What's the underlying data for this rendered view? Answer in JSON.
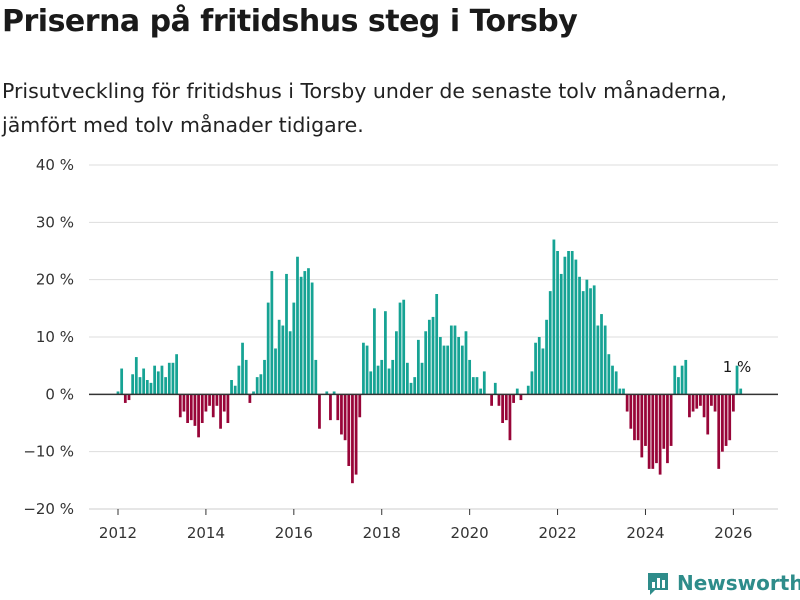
{
  "title": "Priserna på fritidshus steg i Torsby",
  "subtitle": "Prisutveckling för fritidshus i Torsby under de senaste tolv månaderna, jämfört med tolv månader tidigare.",
  "brand": {
    "name": "Newsworthy",
    "icon": "bar-chart-logo-icon",
    "color": "#2e8c8a"
  },
  "chart_data": {
    "type": "bar",
    "title": "Priserna på fritidshus steg i Torsby",
    "xlabel": "",
    "ylabel": "",
    "ylim": [
      -20,
      40
    ],
    "yticks": [
      -20,
      -10,
      0,
      10,
      20,
      30,
      40
    ],
    "ytick_labels": [
      "−20 %",
      "−10 %",
      "0 %",
      "10 %",
      "20 %",
      "30 %",
      "40 %"
    ],
    "xticks": [
      2012,
      2014,
      2016,
      2018,
      2020,
      2022,
      2024,
      2026
    ],
    "xtick_labels": [
      "2012",
      "2014",
      "2016",
      "2018",
      "2020",
      "2022",
      "2024",
      "2026"
    ],
    "x_start": "2012-01",
    "annotation": {
      "text": "1 %",
      "index": 169
    },
    "positive_color": "#16a394",
    "negative_color": "#980538",
    "grid": true,
    "values": [
      0.5,
      4.5,
      -1.5,
      -1,
      3.5,
      6.5,
      3,
      4.5,
      2.5,
      2,
      5,
      4,
      5,
      3,
      5.5,
      5.5,
      7,
      -4,
      -3,
      -5,
      -4.5,
      -5.5,
      -7.5,
      -5,
      -3,
      -2,
      -4,
      -2,
      -6,
      -3,
      -5,
      2.5,
      1.5,
      5,
      9,
      6,
      -1.5,
      0.5,
      3,
      3.5,
      6,
      16,
      21.5,
      8,
      13,
      12,
      21,
      11,
      16,
      24,
      20.5,
      21.5,
      22,
      19.5,
      6,
      -6,
      0,
      0.5,
      -4.5,
      0.5,
      -4.5,
      -7,
      -8,
      -12.5,
      -15.5,
      -14,
      -4,
      9,
      8.5,
      4,
      15,
      5,
      6,
      14.5,
      4.5,
      6,
      11,
      16,
      16.5,
      5.5,
      2,
      3,
      9.5,
      5.5,
      11,
      13,
      13.5,
      17.5,
      10,
      8.5,
      8.5,
      12,
      12,
      10,
      8.5,
      11,
      6,
      3,
      3,
      1,
      4,
      0,
      -2,
      2,
      -2,
      -5,
      -4.5,
      -8,
      -1.5,
      1,
      -1,
      0,
      1.5,
      4,
      9,
      10,
      8,
      13,
      18,
      27,
      25,
      21,
      24,
      25,
      25,
      23.5,
      20.5,
      18,
      20,
      18.5,
      19,
      12,
      14,
      12,
      7,
      5,
      4,
      1,
      1,
      -3,
      -6,
      -8,
      -8,
      -11,
      -9,
      -13,
      -13,
      -12,
      -14,
      -9.5,
      -12,
      -9,
      5,
      3,
      5,
      6,
      -4,
      -3,
      -2.5,
      -2,
      -4,
      -7,
      -2,
      -3,
      -13,
      -10,
      -9,
      -8,
      -3,
      5,
      1
    ]
  }
}
